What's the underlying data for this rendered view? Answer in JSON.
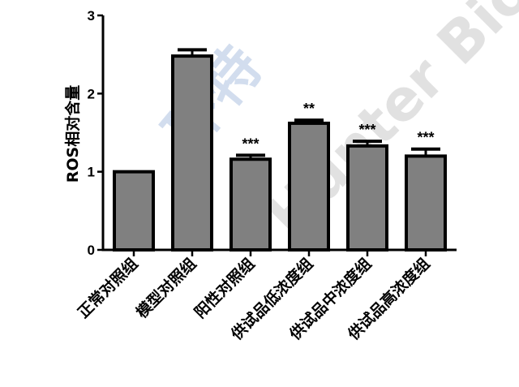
{
  "chart_data": {
    "type": "bar",
    "title": "",
    "xlabel": "",
    "ylabel": "ROS相对含量",
    "ylim": [
      0,
      3
    ],
    "yticks": [
      "0",
      "1",
      "2",
      "3"
    ],
    "grid": false,
    "categories": [
      "正常对照组",
      "模型对照组",
      "阳性对照组",
      "供试品低浓度组",
      "供试品中浓度组",
      "供试品高浓度组"
    ],
    "values": [
      1.0,
      2.48,
      1.16,
      1.62,
      1.33,
      1.2
    ],
    "error_upper": [
      0,
      0.08,
      0.05,
      0.04,
      0.06,
      0.09
    ],
    "significance": [
      "",
      "",
      "***",
      "**",
      "***",
      "***"
    ],
    "bar_color": "#808080",
    "edge_color": "#000000"
  },
  "watermark": {
    "text_cn": "环特",
    "text_en": "Hunter Bio",
    "color": "#b0c4e0"
  }
}
